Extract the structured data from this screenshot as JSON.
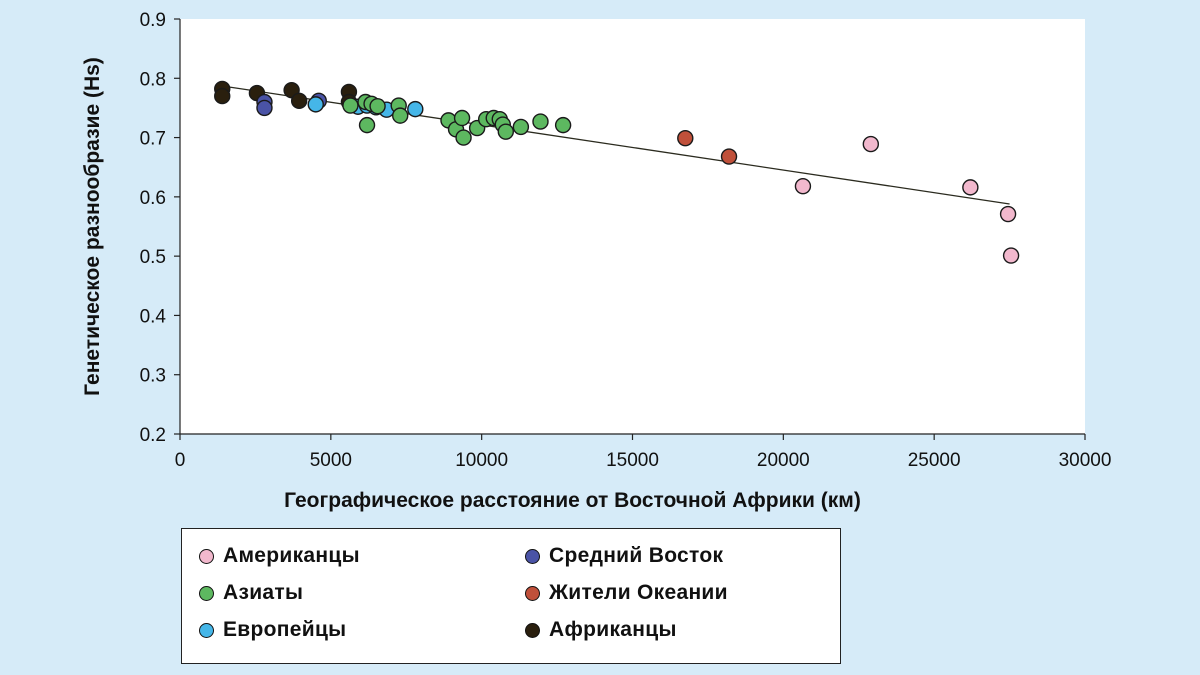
{
  "chart_data": {
    "type": "scatter",
    "title": "",
    "xlabel": "Географическое расстояние от Восточной Африки (км)",
    "ylabel": "Генетическое разнообразие (Hs)",
    "xlim": [
      0,
      30000
    ],
    "ylim": [
      0.2,
      0.9
    ],
    "x_ticks": [
      0,
      5000,
      10000,
      15000,
      20000,
      25000,
      30000
    ],
    "x_tick_labels": [
      "0",
      "5000",
      "10000",
      "15000",
      "20000",
      "25000",
      "30000"
    ],
    "y_ticks": [
      0.2,
      0.3,
      0.4,
      0.5,
      0.6,
      0.7,
      0.8,
      0.9
    ],
    "y_tick_labels": [
      "0.2",
      "0.3",
      "0.4",
      "0.5",
      "0.6",
      "0.7",
      "0.8",
      "0.9"
    ],
    "trendline": {
      "x": [
        1400,
        27500
      ],
      "y": [
        0.787,
        0.588
      ]
    },
    "series": [
      {
        "name": "Африканцы",
        "color": "#2a1f0e",
        "points": [
          {
            "x": 1400,
            "y": 0.782
          },
          {
            "x": 1400,
            "y": 0.77
          },
          {
            "x": 2550,
            "y": 0.775
          },
          {
            "x": 3700,
            "y": 0.78
          },
          {
            "x": 3950,
            "y": 0.762
          },
          {
            "x": 5600,
            "y": 0.777
          },
          {
            "x": 5600,
            "y": 0.76
          }
        ]
      },
      {
        "name": "Средний Восток",
        "color": "#4a53a6",
        "points": [
          {
            "x": 2800,
            "y": 0.76
          },
          {
            "x": 2800,
            "y": 0.75
          },
          {
            "x": 4600,
            "y": 0.762
          }
        ]
      },
      {
        "name": "Европейцы",
        "color": "#45b6e8",
        "points": [
          {
            "x": 4500,
            "y": 0.756
          },
          {
            "x": 5900,
            "y": 0.752
          },
          {
            "x": 6200,
            "y": 0.754
          },
          {
            "x": 6500,
            "y": 0.751
          },
          {
            "x": 6850,
            "y": 0.747
          },
          {
            "x": 7800,
            "y": 0.748
          }
        ]
      },
      {
        "name": "Азиаты",
        "color": "#5db860",
        "points": [
          {
            "x": 5650,
            "y": 0.754
          },
          {
            "x": 6150,
            "y": 0.76
          },
          {
            "x": 6350,
            "y": 0.757
          },
          {
            "x": 6550,
            "y": 0.753
          },
          {
            "x": 6200,
            "y": 0.721
          },
          {
            "x": 7250,
            "y": 0.754
          },
          {
            "x": 7300,
            "y": 0.737
          },
          {
            "x": 8900,
            "y": 0.729
          },
          {
            "x": 9150,
            "y": 0.714
          },
          {
            "x": 9350,
            "y": 0.733
          },
          {
            "x": 9400,
            "y": 0.7
          },
          {
            "x": 9850,
            "y": 0.716
          },
          {
            "x": 10150,
            "y": 0.731
          },
          {
            "x": 10400,
            "y": 0.733
          },
          {
            "x": 10600,
            "y": 0.731
          },
          {
            "x": 10700,
            "y": 0.722
          },
          {
            "x": 10800,
            "y": 0.71
          },
          {
            "x": 11300,
            "y": 0.718
          },
          {
            "x": 11950,
            "y": 0.727
          },
          {
            "x": 12700,
            "y": 0.721
          }
        ]
      },
      {
        "name": "Жители Океании",
        "color": "#c0503a",
        "points": [
          {
            "x": 16750,
            "y": 0.699
          },
          {
            "x": 18200,
            "y": 0.668
          }
        ]
      },
      {
        "name": "Американцы",
        "color": "#f2b8cd",
        "points": [
          {
            "x": 20650,
            "y": 0.618
          },
          {
            "x": 22900,
            "y": 0.689
          },
          {
            "x": 26200,
            "y": 0.616
          },
          {
            "x": 27450,
            "y": 0.571
          },
          {
            "x": 27550,
            "y": 0.501
          }
        ]
      }
    ]
  },
  "legend": {
    "items": [
      {
        "label": "Американцы",
        "color": "#f2b8cd"
      },
      {
        "label": "Средний Восток",
        "color": "#4a53a6"
      },
      {
        "label": "Азиаты",
        "color": "#5db860"
      },
      {
        "label": "Жители Океании",
        "color": "#c0503a"
      },
      {
        "label": "Европейцы",
        "color": "#45b6e8"
      },
      {
        "label": "Африканцы",
        "color": "#2a1f0e"
      }
    ]
  }
}
